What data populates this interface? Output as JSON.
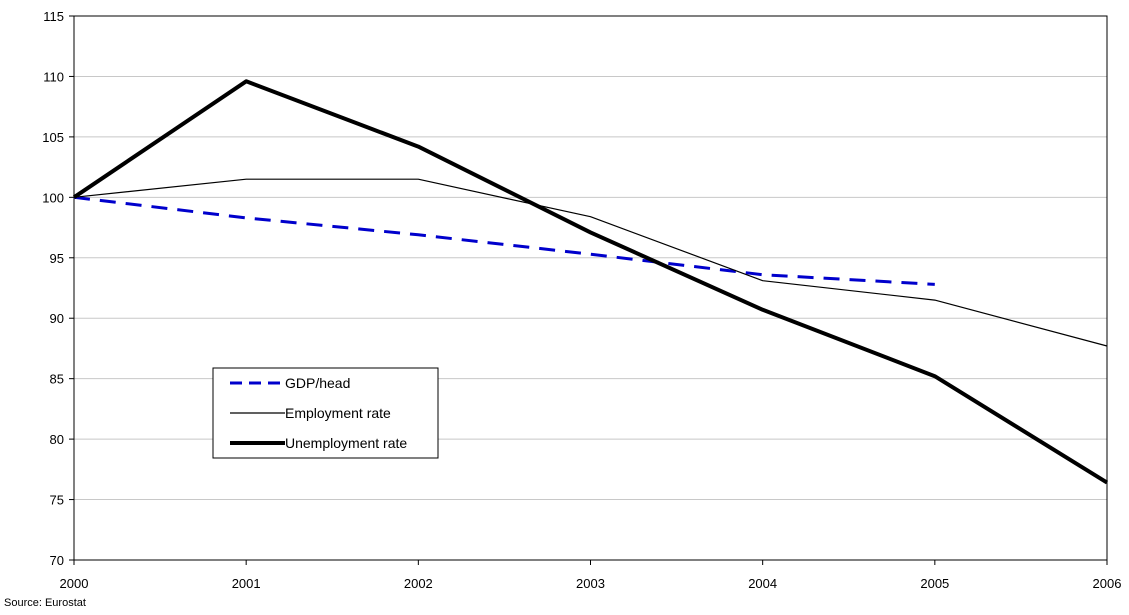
{
  "chart_data": {
    "type": "line",
    "title": "",
    "xlabel": "",
    "ylabel": "",
    "x": [
      "2000",
      "2001",
      "2002",
      "2003",
      "2004",
      "2005",
      "2006"
    ],
    "ylim": [
      70,
      115
    ],
    "yticks": [
      70,
      75,
      80,
      85,
      90,
      95,
      100,
      105,
      110,
      115
    ],
    "grid": "horizontal",
    "legend_position": "left-lower-inside",
    "series": [
      {
        "name": "GDP/head",
        "color": "#0000cc",
        "style": "dashed",
        "weight": "medium",
        "values": [
          100,
          98.3,
          96.9,
          95.3,
          93.6,
          92.8,
          null
        ]
      },
      {
        "name": "Employment rate",
        "color": "#000000",
        "style": "solid",
        "weight": "thin",
        "values": [
          100,
          101.5,
          101.5,
          98.4,
          93.1,
          91.5,
          87.7
        ]
      },
      {
        "name": "Unemployment rate",
        "color": "#000000",
        "style": "solid",
        "weight": "thick",
        "values": [
          100,
          109.6,
          104.2,
          97.1,
          90.7,
          85.2,
          76.4
        ]
      }
    ]
  },
  "source": "Source: Eurostat"
}
